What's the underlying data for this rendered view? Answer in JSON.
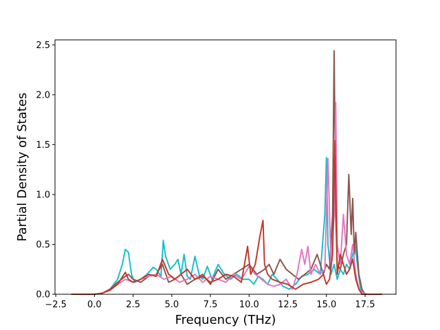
{
  "chart_data": {
    "type": "line",
    "title": "",
    "xlabel": "Frequency (THz)",
    "ylabel": "Partial Density of States",
    "xlim": [
      -2.55,
      19.5
    ],
    "ylim": [
      0,
      2.55
    ],
    "x_ticks": [
      -2.5,
      0.0,
      2.5,
      5.0,
      7.5,
      10.0,
      12.5,
      15.0,
      17.5
    ],
    "x_tick_labels": [
      "−2.5",
      "0.0",
      "2.5",
      "5.0",
      "7.5",
      "10.0",
      "12.5",
      "15.0",
      "17.5"
    ],
    "y_ticks": [
      0.0,
      0.5,
      1.0,
      1.5,
      2.0,
      2.5
    ],
    "y_tick_labels": [
      "0.0",
      "0.5",
      "1.0",
      "1.5",
      "2.0",
      "2.5"
    ],
    "grid": false,
    "legend": "none",
    "series": [
      {
        "color": "#17becf",
        "x": [
          -1.5,
          0.0,
          0.5,
          1.0,
          1.5,
          1.8,
          2.0,
          2.2,
          2.4,
          2.6,
          3.0,
          3.4,
          3.8,
          4.0,
          4.3,
          4.45,
          4.6,
          4.9,
          5.2,
          5.4,
          5.6,
          5.8,
          6.0,
          6.2,
          6.5,
          6.8,
          7.0,
          7.3,
          7.6,
          8.0,
          8.4,
          8.8,
          9.2,
          9.6,
          10.0,
          10.3,
          10.6,
          10.9,
          11.2,
          11.5,
          11.8,
          12.2,
          12.6,
          13.0,
          13.4,
          13.8,
          14.2,
          14.6,
          14.9,
          15.0,
          15.1,
          15.3,
          15.5,
          15.7,
          15.9,
          16.1,
          16.3,
          16.5,
          16.7,
          16.85,
          17.0,
          17.2,
          17.5,
          18.6
        ],
        "y": [
          0,
          0,
          0.01,
          0.05,
          0.15,
          0.3,
          0.45,
          0.42,
          0.2,
          0.12,
          0.15,
          0.2,
          0.27,
          0.25,
          0.18,
          0.54,
          0.38,
          0.25,
          0.3,
          0.35,
          0.2,
          0.4,
          0.18,
          0.15,
          0.38,
          0.18,
          0.15,
          0.28,
          0.15,
          0.3,
          0.2,
          0.15,
          0.2,
          0.15,
          0.15,
          0.1,
          0.18,
          0.15,
          0.1,
          0.2,
          0.15,
          0.08,
          0.05,
          0.1,
          0.18,
          0.2,
          0.25,
          0.2,
          0.8,
          1.37,
          0.5,
          0.2,
          0.3,
          0.15,
          0.25,
          0.2,
          0.3,
          0.25,
          0.4,
          0.5,
          0.3,
          0.05,
          0,
          0
        ]
      },
      {
        "color": "#8c564b",
        "x": [
          -1.5,
          0.0,
          0.5,
          1.0,
          1.5,
          2.0,
          2.2,
          2.5,
          3.0,
          3.5,
          4.0,
          4.4,
          4.8,
          5.2,
          5.6,
          6.0,
          6.5,
          7.0,
          7.5,
          8.0,
          8.5,
          9.0,
          9.5,
          10.0,
          10.5,
          11.0,
          11.3,
          11.6,
          12.0,
          12.4,
          12.8,
          13.2,
          13.6,
          14.0,
          14.4,
          14.8,
          15.0,
          15.2,
          15.4,
          15.5,
          15.6,
          15.7,
          15.9,
          16.1,
          16.3,
          16.45,
          16.6,
          16.7,
          16.8,
          16.9,
          17.0,
          17.1,
          17.3,
          17.5,
          18.6
        ],
        "y": [
          0,
          0,
          0.01,
          0.05,
          0.12,
          0.18,
          0.2,
          0.15,
          0.12,
          0.18,
          0.2,
          0.3,
          0.12,
          0.15,
          0.2,
          0.1,
          0.15,
          0.2,
          0.1,
          0.25,
          0.15,
          0.2,
          0.25,
          0.3,
          0.2,
          0.25,
          0.3,
          0.2,
          0.35,
          0.25,
          0.2,
          0.15,
          0.2,
          0.25,
          0.4,
          0.2,
          0.3,
          0.25,
          0.8,
          2.44,
          0.8,
          0.3,
          0.25,
          0.4,
          0.5,
          1.2,
          0.6,
          0.96,
          0.4,
          0.62,
          0.4,
          0.2,
          0.05,
          0,
          0
        ]
      },
      {
        "color": "#e377c2",
        "x": [
          -1.5,
          0.0,
          0.5,
          1.0,
          1.5,
          2.0,
          2.5,
          3.0,
          3.5,
          4.0,
          4.5,
          5.0,
          5.5,
          6.0,
          6.5,
          7.0,
          7.5,
          8.0,
          8.5,
          9.0,
          9.5,
          10.0,
          10.4,
          10.8,
          11.2,
          11.6,
          12.0,
          12.4,
          12.8,
          13.1,
          13.4,
          13.6,
          13.8,
          14.0,
          14.3,
          14.6,
          14.9,
          15.1,
          15.3,
          15.5,
          15.6,
          15.7,
          15.9,
          16.1,
          16.3,
          16.5,
          16.7,
          16.9,
          17.1,
          17.3,
          17.6,
          18.6
        ],
        "y": [
          0,
          0,
          0.01,
          0.04,
          0.1,
          0.15,
          0.12,
          0.15,
          0.18,
          0.2,
          0.15,
          0.18,
          0.12,
          0.15,
          0.2,
          0.12,
          0.18,
          0.15,
          0.12,
          0.2,
          0.15,
          0.28,
          0.2,
          0.15,
          0.1,
          0.08,
          0.1,
          0.15,
          0.05,
          0.2,
          0.45,
          0.3,
          0.48,
          0.2,
          0.3,
          0.2,
          0.25,
          1.36,
          0.3,
          0.8,
          1.92,
          0.5,
          0.3,
          0.8,
          0.4,
          0.3,
          0.5,
          0.2,
          0.05,
          0.02,
          0,
          0
        ]
      },
      {
        "color": "#c0392b",
        "x": [
          -1.5,
          0.0,
          0.5,
          1.0,
          1.5,
          2.0,
          2.2,
          2.5,
          3.0,
          3.5,
          4.0,
          4.4,
          4.8,
          5.2,
          5.6,
          6.0,
          6.5,
          7.0,
          7.5,
          8.0,
          8.5,
          9.0,
          9.5,
          9.9,
          10.1,
          10.4,
          10.7,
          10.9,
          11.0,
          11.2,
          11.5,
          12.0,
          12.5,
          13.0,
          13.5,
          14.0,
          14.5,
          14.8,
          15.0,
          15.2,
          15.4,
          15.55,
          15.7,
          15.9,
          16.1,
          16.3,
          16.5,
          16.7,
          16.9,
          17.1,
          17.3,
          18.6
        ],
        "y": [
          0,
          0,
          0.01,
          0.04,
          0.1,
          0.22,
          0.15,
          0.12,
          0.15,
          0.2,
          0.18,
          0.35,
          0.2,
          0.15,
          0.2,
          0.25,
          0.15,
          0.18,
          0.12,
          0.15,
          0.2,
          0.18,
          0.12,
          0.48,
          0.2,
          0.3,
          0.58,
          0.74,
          0.3,
          0.2,
          0.15,
          0.12,
          0.1,
          0.05,
          0.1,
          0.12,
          0.15,
          0.2,
          0.1,
          0.15,
          0.4,
          1.54,
          0.2,
          0.4,
          0.3,
          0.2,
          0.25,
          0.35,
          0.15,
          0.05,
          0,
          0
        ]
      }
    ]
  }
}
